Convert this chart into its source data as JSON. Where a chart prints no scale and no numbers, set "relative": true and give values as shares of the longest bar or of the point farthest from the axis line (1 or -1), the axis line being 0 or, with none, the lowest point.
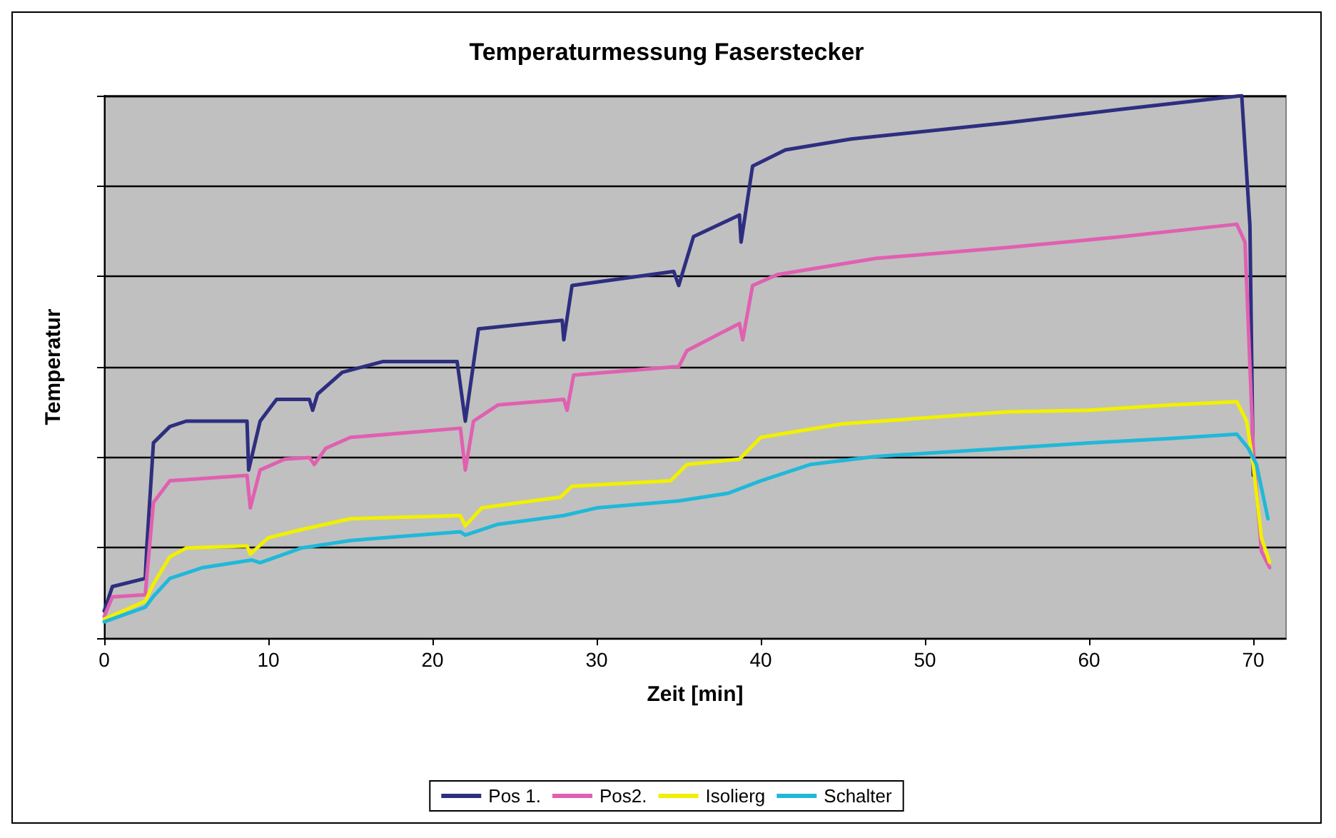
{
  "chart_data": {
    "type": "line",
    "title": "Temperaturmessung Faserstecker",
    "xlabel": "Zeit [min]",
    "ylabel": "Temperatur",
    "relative": true,
    "grid": "y",
    "legend": "bottom",
    "marker": "none",
    "line_style": "solid",
    "xlim": [
      0,
      72
    ],
    "xticks": [
      0,
      10,
      20,
      30,
      40,
      50,
      60,
      70
    ],
    "series": [
      {
        "name": "Pos 1.",
        "color": "#2e2e80",
        "x": [
          0,
          0.5,
          2.5,
          2.6,
          3,
          4,
          5,
          8.7,
          8.8,
          9.5,
          10.5,
          12.5,
          12.7,
          13,
          14.5,
          17,
          21.5,
          22,
          22.8,
          27.9,
          28,
          28.5,
          34.7,
          35,
          35.9,
          38.7,
          38.8,
          39.5,
          41.5,
          45.5,
          55,
          62,
          69.3,
          69.8,
          70
        ],
        "values": [
          0.05,
          0.095,
          0.11,
          0.17,
          0.36,
          0.39,
          0.4,
          0.4,
          0.31,
          0.4,
          0.44,
          0.44,
          0.42,
          0.45,
          0.49,
          0.51,
          0.51,
          0.4,
          0.57,
          0.586,
          0.55,
          0.65,
          0.676,
          0.65,
          0.74,
          0.78,
          0.73,
          0.87,
          0.9,
          0.92,
          0.95,
          0.975,
          1,
          0.76,
          0.3
        ]
      },
      {
        "name": "Pos2.",
        "color": "#e060b0",
        "x": [
          0,
          0.5,
          2.5,
          3,
          4,
          8.7,
          8.9,
          9.5,
          11,
          12.5,
          12.8,
          13.5,
          15,
          21.7,
          22,
          22.5,
          24,
          28,
          28.2,
          28.6,
          34.7,
          35,
          35.5,
          38.7,
          38.9,
          39.5,
          41,
          47,
          55,
          62,
          69,
          69.5,
          70,
          70.5,
          71
        ],
        "values": [
          0.04,
          0.076,
          0.08,
          0.25,
          0.29,
          0.3,
          0.24,
          0.31,
          0.33,
          0.333,
          0.32,
          0.35,
          0.37,
          0.387,
          0.31,
          0.4,
          0.43,
          0.44,
          0.42,
          0.485,
          0.5,
          0.5,
          0.53,
          0.58,
          0.55,
          0.65,
          0.67,
          0.7,
          0.72,
          0.74,
          0.763,
          0.73,
          0.35,
          0.16,
          0.13
        ]
      },
      {
        "name": "Isolierg",
        "color": "#f0f000",
        "x": [
          0,
          2.5,
          3,
          4,
          5,
          8.7,
          8.9,
          10,
          12,
          15,
          21.7,
          22,
          23,
          27.8,
          28.5,
          34.5,
          35.5,
          38.7,
          40,
          45,
          55,
          60,
          65,
          69,
          69.6,
          70,
          70.5,
          71
        ],
        "values": [
          0.035,
          0.068,
          0.1,
          0.15,
          0.166,
          0.17,
          0.155,
          0.185,
          0.2,
          0.22,
          0.226,
          0.207,
          0.24,
          0.26,
          0.28,
          0.29,
          0.32,
          0.33,
          0.37,
          0.395,
          0.417,
          0.42,
          0.43,
          0.436,
          0.4,
          0.32,
          0.185,
          0.14
        ]
      },
      {
        "name": "Schalter",
        "color": "#20b8d8",
        "x": [
          0,
          2.5,
          3,
          4,
          6,
          9,
          9.5,
          12,
          15,
          21.7,
          22,
          24,
          28,
          30,
          35,
          38,
          40,
          43,
          47,
          55,
          60,
          65,
          69,
          69.7,
          70.2,
          70.9
        ],
        "values": [
          0.03,
          0.057,
          0.077,
          0.11,
          0.13,
          0.144,
          0.139,
          0.166,
          0.18,
          0.196,
          0.19,
          0.21,
          0.226,
          0.24,
          0.253,
          0.267,
          0.29,
          0.32,
          0.335,
          0.35,
          0.36,
          0.368,
          0.376,
          0.35,
          0.32,
          0.22
        ]
      }
    ]
  }
}
